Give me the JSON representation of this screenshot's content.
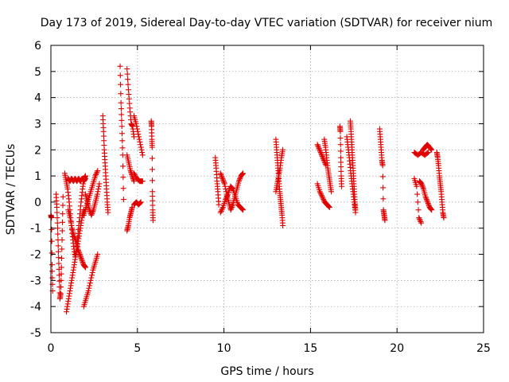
{
  "chart_data": {
    "type": "scatter",
    "title": "Day 173 of 2019, Sidereal Day-to-day VTEC variation (SDTVAR) for receiver nium",
    "xlabel": "GPS time / hours",
    "ylabel": "SDTVAR / TECUs",
    "xlim": [
      0,
      25
    ],
    "ylim": [
      -5,
      6
    ],
    "xticks": [
      "0",
      "5",
      "10",
      "15",
      "20",
      "25"
    ],
    "yticks": [
      "-5",
      "-4",
      "-3",
      "-2",
      "-1",
      "0",
      "1",
      "2",
      "3",
      "4",
      "5",
      "6"
    ],
    "grid": true,
    "marker": "plus",
    "color": "#e00000",
    "segments": [
      {
        "x0": 0.0,
        "x1": 0.1,
        "y": [
          -0.5,
          -0.6,
          -2.4,
          -3.4
        ]
      },
      {
        "x0": 0.3,
        "x1": 0.7,
        "y": [
          0.3,
          -0.2,
          -1.0,
          -1.9,
          -2.8,
          -3.7,
          -3.5,
          -2.5,
          -1.1,
          0.2
        ]
      },
      {
        "x0": 0.8,
        "x1": 2.0,
        "y": [
          1.1,
          0.8,
          0.5,
          0.0,
          -0.6,
          -1.2,
          -1.7,
          -2.1,
          -1.8,
          -1.2,
          -0.6,
          0.0,
          0.5,
          0.9,
          1.0
        ]
      },
      {
        "x0": 0.9,
        "x1": 1.9,
        "y": [
          -4.2,
          -3.8,
          -3.4,
          -3.0,
          -2.6,
          -2.2,
          -1.8,
          -1.4,
          -1.0,
          -0.6,
          -0.3
        ]
      },
      {
        "x0": 1.0,
        "x1": 2.0,
        "y": [
          0.9,
          0.8,
          0.9,
          0.8,
          0.9,
          0.8,
          0.9,
          0.8,
          0.9,
          0.8,
          0.9
        ]
      },
      {
        "x0": 1.0,
        "x1": 2.0,
        "y": [
          -0.3,
          -0.6,
          -1.0,
          -1.3,
          -1.5,
          -1.8,
          -2.0,
          -2.2,
          -2.4,
          -2.5
        ]
      },
      {
        "x0": 1.9,
        "x1": 2.7,
        "y": [
          -4.0,
          -3.7,
          -3.4,
          -3.0,
          -2.6,
          -2.3,
          -2.0
        ]
      },
      {
        "x0": 1.9,
        "x1": 2.7,
        "y": [
          -0.5,
          -0.2,
          0.1,
          0.4,
          0.7,
          1.0,
          1.2
        ]
      },
      {
        "x0": 2.0,
        "x1": 2.8,
        "y": [
          0.3,
          0.0,
          -0.3,
          -0.5,
          -0.3,
          0.0,
          0.3,
          0.7
        ]
      },
      {
        "x0": 3.0,
        "x1": 3.3,
        "y": [
          3.3,
          2.7,
          2.0,
          1.5,
          1.0,
          0.5,
          0.0,
          -0.4
        ]
      },
      {
        "x0": 4.0,
        "x1": 4.2,
        "y": [
          5.2,
          3.8,
          2.9,
          1.8,
          0.1
        ]
      },
      {
        "x0": 4.4,
        "x1": 4.8,
        "y": [
          5.1,
          4.3,
          3.6,
          3.0,
          2.9,
          2.5
        ]
      },
      {
        "x0": 4.4,
        "x1": 4.8,
        "y": [
          1.8,
          1.5,
          1.2,
          1.0,
          0.8
        ]
      },
      {
        "x0": 4.4,
        "x1": 4.7,
        "y": [
          -1.1,
          -0.9,
          -0.6,
          -0.4,
          -0.2
        ]
      },
      {
        "x0": 4.8,
        "x1": 5.3,
        "y": [
          3.3,
          3.0,
          2.6,
          2.2,
          1.8
        ]
      },
      {
        "x0": 4.8,
        "x1": 5.3,
        "y": [
          1.1,
          0.9,
          0.8,
          0.8
        ]
      },
      {
        "x0": 4.8,
        "x1": 5.2,
        "y": [
          -0.1,
          0.0,
          -0.1,
          0.0
        ]
      },
      {
        "x0": 5.8,
        "x1": 5.9,
        "y": [
          3.1,
          2.9,
          2.4,
          2.1,
          0.4,
          -0.3,
          -0.7
        ]
      },
      {
        "x0": 9.5,
        "x1": 9.7,
        "y": [
          1.7,
          1.3,
          0.8,
          0.4,
          -0.1
        ]
      },
      {
        "x0": 9.8,
        "x1": 11.1,
        "y": [
          1.1,
          0.9,
          0.7,
          0.3,
          0.0,
          -0.3,
          -0.1,
          0.2,
          0.5,
          0.8,
          1.0,
          1.1
        ]
      },
      {
        "x0": 9.8,
        "x1": 11.1,
        "y": [
          -0.4,
          -0.2,
          0.1,
          0.3,
          0.6,
          0.5,
          0.2,
          -0.1,
          -0.2,
          -0.3
        ]
      },
      {
        "x0": 13.0,
        "x1": 13.4,
        "y": [
          2.4,
          2.0,
          1.6,
          1.2,
          0.8,
          0.4,
          0.1,
          -0.2,
          -0.5,
          -0.9
        ]
      },
      {
        "x0": 13.0,
        "x1": 13.4,
        "y": [
          0.4,
          0.7,
          1.0,
          1.3,
          1.7,
          2.0
        ]
      },
      {
        "x0": 15.4,
        "x1": 15.9,
        "y": [
          2.2,
          2.0,
          1.8,
          1.6,
          1.4
        ]
      },
      {
        "x0": 15.4,
        "x1": 16.1,
        "y": [
          0.7,
          0.4,
          0.2,
          0.0,
          -0.1,
          -0.2
        ]
      },
      {
        "x0": 15.8,
        "x1": 16.2,
        "y": [
          2.4,
          2.1,
          1.7,
          1.3,
          1.0,
          0.7,
          0.4
        ]
      },
      {
        "x0": 16.7,
        "x1": 16.8,
        "y": [
          2.9,
          2.7,
          1.7,
          1.0,
          0.6
        ]
      },
      {
        "x0": 17.1,
        "x1": 17.6,
        "y": [
          2.5,
          2.1,
          1.7,
          1.2,
          0.8,
          0.4,
          0.0,
          -0.4
        ]
      },
      {
        "x0": 17.3,
        "x1": 17.6,
        "y": [
          3.1,
          2.8,
          2.4,
          2.0,
          1.6,
          1.2,
          0.8,
          0.4,
          0.0,
          -0.3
        ]
      },
      {
        "x0": 19.0,
        "x1": 19.3,
        "y": [
          2.8,
          2.4,
          2.0,
          1.6,
          1.4,
          -0.3,
          -0.5,
          -0.7
        ]
      },
      {
        "x0": 21.0,
        "x1": 21.8,
        "y": [
          1.9,
          1.8,
          1.9,
          1.8,
          1.9
        ]
      },
      {
        "x0": 21.0,
        "x1": 21.4,
        "y": [
          0.9,
          0.6,
          -0.6,
          -0.8
        ]
      },
      {
        "x0": 21.5,
        "x1": 22.0,
        "y": [
          2.0,
          2.1,
          2.2,
          2.1,
          2.0
        ]
      },
      {
        "x0": 21.3,
        "x1": 22.0,
        "y": [
          0.8,
          0.7,
          0.5,
          0.2,
          0.0,
          -0.2,
          -0.3
        ]
      },
      {
        "x0": 22.3,
        "x1": 22.7,
        "y": [
          1.9,
          1.7,
          1.4,
          1.0,
          0.7,
          0.4,
          0.0,
          -0.4,
          -0.6
        ]
      }
    ]
  }
}
